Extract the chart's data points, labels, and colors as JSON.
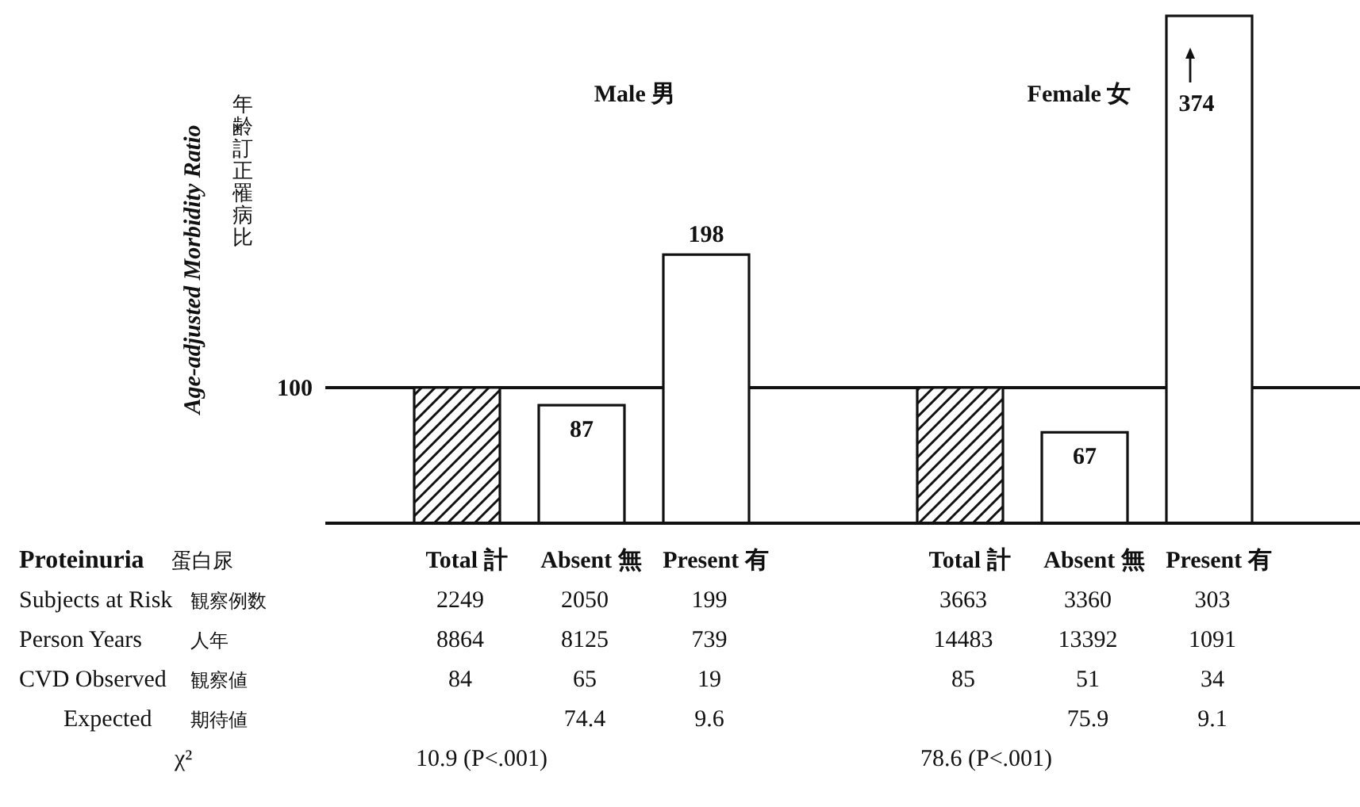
{
  "chart_data": {
    "type": "bar",
    "ylabel": "Age-adjusted Morbidity Ratio",
    "categories": [
      "Total 計",
      "Absent 無",
      "Present 有",
      "Total 計",
      "Absent 無",
      "Present 有"
    ],
    "values": [
      100,
      87,
      198,
      100,
      67,
      374
    ],
    "value_labels": [
      null,
      "87",
      "198",
      null,
      "67",
      "374"
    ],
    "colors": [
      "#111111",
      "#ffffff",
      "#ffffff",
      "#111111",
      "#ffffff",
      "#ffffff"
    ],
    "ref_lines": [
      {
        "axis": "y",
        "value": 100,
        "label": "100"
      }
    ],
    "annotations": [
      "Male 男",
      "Female 女",
      "年齢訂正罹病比",
      "Proteinuria",
      "蛋白尿",
      "Subjects at Risk",
      "観察例数",
      "2249",
      "2050",
      "199",
      "3663",
      "3360",
      "303",
      "Person Years",
      "人年",
      "8864",
      "8125",
      "739",
      "14483",
      "13392",
      "1091",
      "CVD Observed",
      "観察値",
      "84",
      "65",
      "19",
      "85",
      "51",
      "34",
      "Expected",
      "期待値",
      "74.4",
      "9.6",
      "75.9",
      "9.1",
      "χ²",
      "10.9 (P<.001)",
      "78.6 (P<.001)"
    ]
  }
}
